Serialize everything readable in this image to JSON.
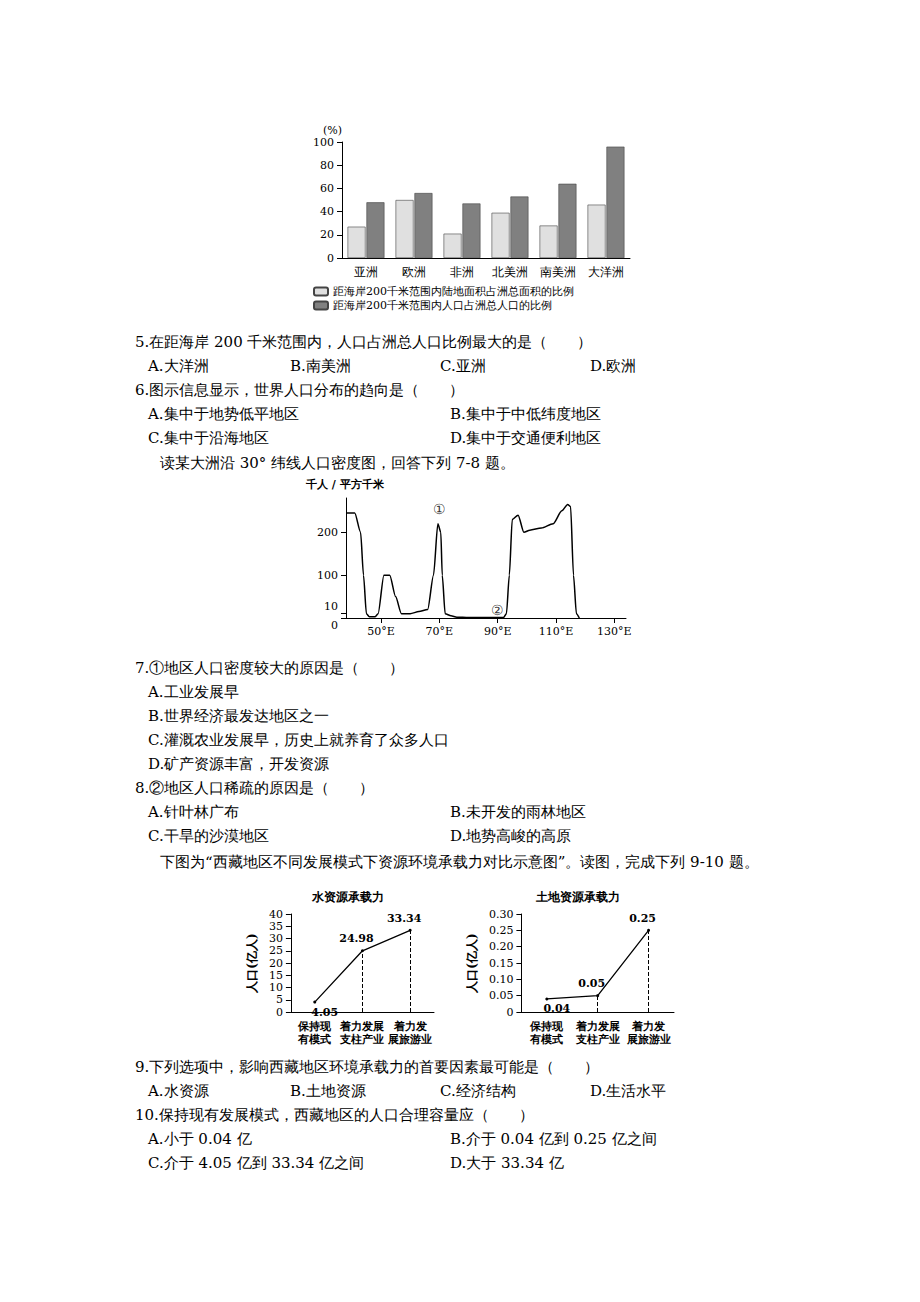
{
  "chart_data": [
    {
      "type": "bar",
      "y_label": "(%)",
      "categories": [
        "亚洲",
        "欧洲",
        "非洲",
        "北美洲",
        "南美洲",
        "大洋洲"
      ],
      "series": [
        {
          "name": "距海岸200千米范围内陆地面积占洲总面积的比例",
          "color": "#e0e0e0",
          "values": [
            27,
            50,
            21,
            39,
            28,
            46
          ]
        },
        {
          "name": "距海岸200千米范围内人口占洲总人口的比例",
          "color": "#808080",
          "values": [
            48,
            56,
            47,
            53,
            64,
            96
          ]
        }
      ],
      "ylim": [
        0,
        100
      ],
      "yticks": [
        0,
        20,
        40,
        60,
        80,
        100
      ],
      "grid": false,
      "legend": "lower left"
    },
    {
      "type": "line",
      "y_label": "千人 / 平方千米",
      "x": [
        38,
        41,
        43,
        44,
        45,
        46,
        48,
        49,
        51,
        53,
        55,
        57,
        60,
        63,
        66,
        68,
        69.5,
        70.5,
        71,
        72,
        74,
        76,
        80,
        92,
        93,
        94,
        95,
        97,
        99,
        101,
        105,
        109,
        112,
        114,
        115,
        116,
        117,
        118
      ],
      "values": [
        245,
        245,
        200,
        100,
        10,
        3,
        3,
        10,
        100,
        100,
        50,
        10,
        10,
        15,
        20,
        100,
        220,
        200,
        100,
        10,
        5,
        2,
        1,
        1,
        10,
        100,
        230,
        240,
        200,
        205,
        210,
        220,
        250,
        265,
        260,
        100,
        10,
        0
      ],
      "color": "#000000",
      "xlim": [
        38,
        134
      ],
      "xticks": [
        {
          "value": 50,
          "label": "50°E"
        },
        {
          "value": 70,
          "label": "70°E"
        },
        {
          "value": 90,
          "label": "90°E"
        },
        {
          "value": 110,
          "label": "110°E"
        },
        {
          "value": 130,
          "label": "130°E"
        }
      ],
      "ylim": [
        0,
        280
      ],
      "yticks": [
        0,
        10,
        100,
        200
      ],
      "grid": false,
      "annotations": [
        {
          "text": "①",
          "x": 70,
          "y": 255
        },
        {
          "text": "②",
          "x": 90,
          "y": 18
        }
      ]
    },
    {
      "type": "line",
      "title": "水资源承载力",
      "y_label": "人口(亿人)",
      "categories": [
        "保持现\n有模式",
        "着力发展\n支柱产业",
        "着力发\n展旅游业"
      ],
      "values": [
        4.05,
        24.98,
        33.34
      ],
      "color": "#000000",
      "ylim": [
        0,
        40
      ],
      "yticks": [
        0,
        5,
        10,
        15,
        20,
        25,
        30,
        35,
        40
      ],
      "grid": false,
      "data_labels": true
    },
    {
      "type": "line",
      "title": "土地资源承载力",
      "y_label": "人口(亿人)",
      "categories": [
        "保持现\n有模式",
        "着力发展\n支柱产业",
        "着力发\n展旅游业"
      ],
      "values": [
        0.04,
        0.05,
        0.25
      ],
      "color": "#000000",
      "ylim": [
        0,
        0.3
      ],
      "yticks": [
        0,
        0.05,
        {
          "value": 0.1,
          "label": "0.10"
        },
        0.15,
        {
          "value": 0.2,
          "label": "0.20"
        },
        0.25,
        {
          "value": 0.3,
          "label": "0.30"
        }
      ],
      "grid": false,
      "data_labels": true
    }
  ],
  "document": {
    "questions": [
      {
        "stem": "5.在距海岸 200 千米范围内，人口占洲总人口比例最大的是（　　）",
        "options": [
          "A.大洋洲",
          "B.南美洲",
          "C.亚洲",
          "D.欧洲"
        ]
      },
      {
        "stem": "6.图示信息显示，世界人口分布的趋向是（　　）",
        "options": [
          "A.集中于地势低平地区",
          "B.集中于中低纬度地区",
          "C.集中于沿海地区",
          "D.集中于交通便利地区"
        ]
      },
      {
        "stem": "7.①地区人口密度较大的原因是（　　）",
        "options": [
          "A.工业发展早",
          "B.世界经济最发达地区之一",
          "C.灌溉农业发展早，历史上就养育了众多人口",
          "D.矿产资源丰富，开发资源"
        ]
      },
      {
        "stem": "8.②地区人口稀疏的原因是（　　）",
        "options": [
          "A.针叶林广布",
          "B.未开发的雨林地区",
          "C.干旱的沙漠地区",
          "D.地势高峻的高原"
        ]
      },
      {
        "stem": "9.下列选项中，影响西藏地区环境承载力的首要因素最可能是（　　）",
        "options": [
          "A.水资源",
          "B.土地资源",
          "C.经济结构",
          "D.生活水平"
        ]
      },
      {
        "stem": "10.保持现有发展模式，西藏地区的人口合理容量应（　　）",
        "options": [
          "A.小于 0.04 亿",
          "B.介于 0.04 亿到 0.25 亿之间",
          "C.介于 4.05 亿到 33.34 亿之间",
          "D.大于 33.34 亿"
        ]
      }
    ],
    "intros": [
      "读某大洲沿 30° 纬线人口密度图，回答下列 7-8 题。",
      "下图为“西藏地区不同发展模式下资源环境承载力对比示意图”。读图，完成下列 9-10 题。"
    ]
  }
}
